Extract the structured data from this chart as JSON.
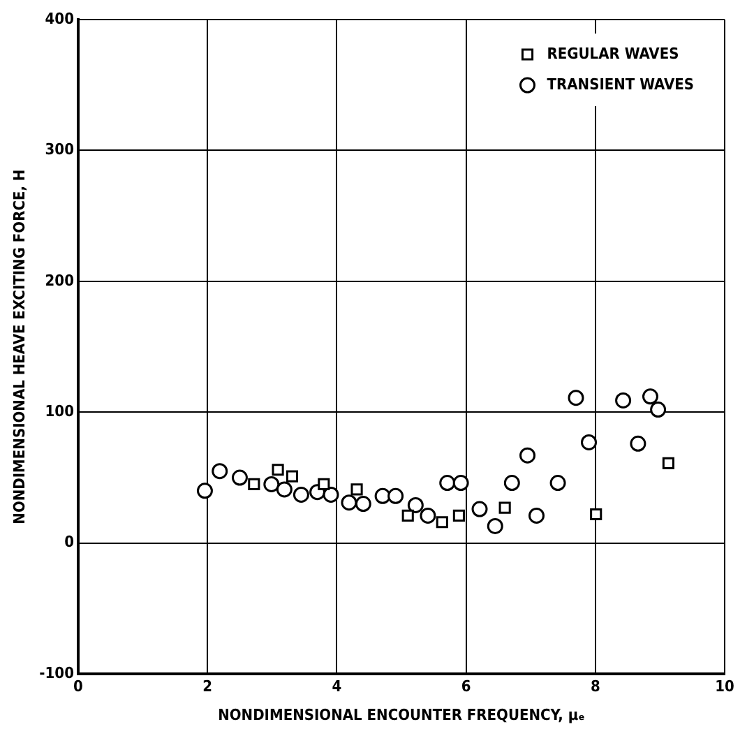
{
  "chart_data": {
    "type": "scatter",
    "xlabel": "NONDIMENSIONAL ENCOUNTER FREQUENCY, μₑ",
    "ylabel": "NONDIMENSIONAL HEAVE EXCITING FORCE, H",
    "xlim": [
      0,
      10
    ],
    "xticks": [
      0,
      2,
      4,
      6,
      8,
      10
    ],
    "ylim": [
      -100,
      400
    ],
    "yticks": [
      -100,
      0,
      100,
      200,
      300,
      400
    ],
    "grid": true,
    "legend": "top right",
    "series": [
      {
        "name": "REGULAR WAVES",
        "color": "#000000",
        "marker": "square",
        "x": [
          2.72,
          3.09,
          3.31,
          3.8,
          4.31,
          5.1,
          5.63,
          5.89,
          6.6,
          8.01,
          9.13
        ],
        "values": [
          45,
          56,
          51,
          45,
          41,
          21,
          16,
          21,
          27,
          22,
          61
        ]
      },
      {
        "name": "TRANSIENT WAVES",
        "color": "#000000",
        "marker": "circle",
        "x": [
          1.96,
          2.19,
          2.5,
          2.99,
          3.19,
          3.45,
          3.7,
          3.91,
          4.19,
          4.41,
          4.71,
          4.91,
          5.22,
          5.41,
          5.71,
          5.92,
          6.21,
          6.45,
          6.71,
          6.95,
          7.09,
          7.42,
          7.7,
          7.9,
          8.43,
          8.66,
          8.85,
          8.97
        ],
        "values": [
          40,
          55,
          50,
          45,
          41,
          37,
          39,
          37,
          31,
          30,
          36,
          36,
          29,
          21,
          46,
          46,
          26,
          13,
          46,
          67,
          21,
          46,
          111,
          77,
          109,
          76,
          112,
          102
        ]
      }
    ]
  }
}
